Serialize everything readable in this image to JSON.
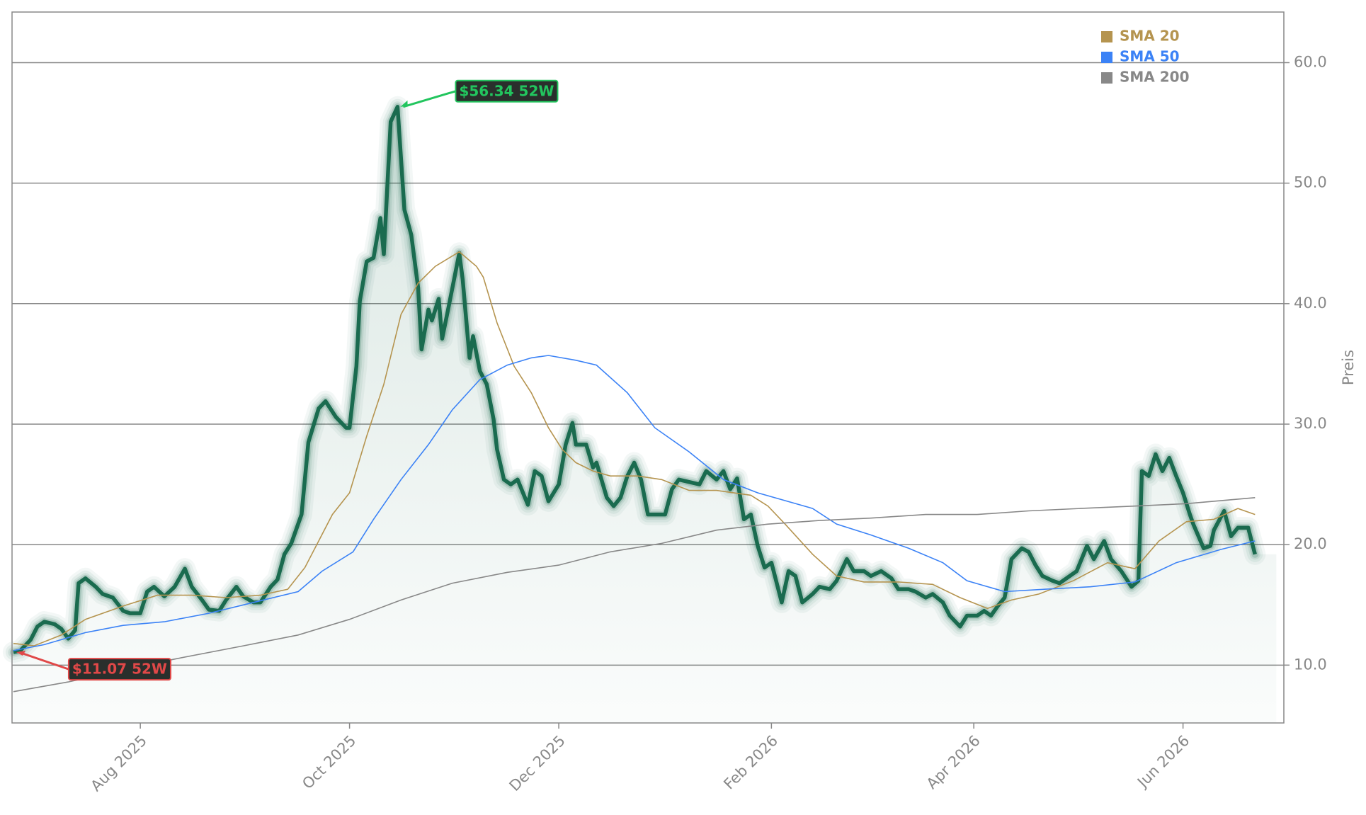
{
  "chart_data": {
    "type": "line",
    "ylabel": "Preis",
    "xlim": [
      -37.4,
      333.4
    ],
    "ylim": [
      5.2,
      64.2
    ],
    "xticks": [
      {
        "value": 0,
        "label": "Aug 2025"
      },
      {
        "value": 61,
        "label": "Oct 2025"
      },
      {
        "value": 122,
        "label": "Dec 2025"
      },
      {
        "value": 184,
        "label": "Feb 2026"
      },
      {
        "value": 243,
        "label": "Apr 2026"
      },
      {
        "value": 304,
        "label": "Jun 2026"
      }
    ],
    "yticks": [
      {
        "value": 10,
        "label": "10.0"
      },
      {
        "value": 20,
        "label": "20.0"
      },
      {
        "value": 30,
        "label": "30.0"
      },
      {
        "value": 40,
        "label": "40.0"
      },
      {
        "value": 50,
        "label": "50.0"
      },
      {
        "value": 60,
        "label": "60.0"
      }
    ],
    "grid": true,
    "legend": "upper right",
    "series": [
      {
        "color": "#1a6b4f",
        "x": [
          -37,
          -35,
          -32,
          -30,
          -28,
          -25,
          -23,
          -21,
          -19,
          -18,
          -16,
          -13,
          -11,
          -8,
          -5,
          -3,
          0,
          2,
          4,
          7,
          10,
          13,
          15,
          18,
          20,
          23,
          25,
          28,
          30,
          33,
          35,
          38,
          40,
          42,
          44,
          47,
          49,
          52,
          54,
          57,
          60,
          61,
          63,
          64,
          66,
          68,
          70,
          71,
          73,
          75,
          77,
          79,
          81,
          82,
          84,
          85,
          87,
          88,
          90,
          93,
          94,
          96,
          97,
          99,
          101,
          103,
          104,
          106,
          108,
          110,
          113,
          115,
          117,
          119,
          122,
          124,
          126,
          127,
          130,
          132,
          133,
          136,
          138,
          140,
          142,
          144,
          146,
          148,
          150,
          153,
          155,
          157,
          160,
          163,
          165,
          168,
          170,
          172,
          174,
          176,
          178,
          180,
          182,
          184,
          187,
          189,
          191,
          193,
          196,
          198,
          201,
          203,
          206,
          208,
          211,
          213,
          216,
          219,
          221,
          224,
          226,
          229,
          231,
          234,
          236,
          239,
          241,
          244,
          246,
          248,
          250,
          252,
          254,
          257,
          259,
          261,
          263,
          266,
          268,
          271,
          273,
          276,
          278,
          281,
          283,
          286,
          289,
          291,
          292,
          294,
          296,
          298,
          300,
          302,
          304,
          306,
          307,
          310,
          312,
          313,
          316,
          318,
          320,
          323,
          325
        ],
        "values": [
          11.07,
          11.2,
          12.1,
          13.2,
          13.6,
          13.4,
          13.0,
          12.2,
          12.9,
          16.8,
          17.2,
          16.5,
          15.9,
          15.6,
          14.5,
          14.3,
          14.3,
          16.1,
          16.5,
          15.7,
          16.5,
          18.0,
          16.5,
          15.4,
          14.6,
          14.5,
          15.4,
          16.5,
          15.7,
          15.2,
          15.2,
          16.5,
          17.1,
          19.2,
          20.1,
          22.5,
          28.5,
          31.3,
          31.9,
          30.6,
          29.7,
          29.7,
          34.8,
          40.2,
          43.5,
          43.8,
          47.1,
          44.1,
          55.1,
          56.34,
          47.8,
          45.7,
          41.3,
          36.2,
          39.5,
          38.6,
          40.4,
          37.1,
          39.9,
          44.2,
          42.0,
          35.5,
          37.3,
          34.4,
          33.3,
          30.4,
          27.9,
          25.4,
          25.0,
          25.4,
          23.3,
          26.1,
          25.7,
          23.6,
          25.0,
          28.3,
          30.1,
          28.3,
          28.3,
          26.4,
          26.8,
          23.9,
          23.2,
          23.9,
          25.7,
          26.8,
          25.4,
          22.5,
          22.5,
          22.5,
          24.6,
          25.4,
          25.2,
          25.0,
          26.1,
          25.4,
          26.1,
          24.6,
          25.5,
          22.1,
          22.5,
          19.9,
          18.1,
          18.5,
          15.2,
          17.8,
          17.4,
          15.2,
          15.9,
          16.5,
          16.3,
          17.0,
          18.8,
          17.8,
          17.8,
          17.4,
          17.8,
          17.2,
          16.3,
          16.3,
          16.1,
          15.6,
          15.9,
          15.2,
          14.1,
          13.2,
          14.1,
          14.1,
          14.5,
          14.1,
          14.9,
          15.6,
          18.8,
          19.7,
          19.4,
          18.3,
          17.4,
          17.0,
          16.8,
          17.4,
          17.8,
          19.9,
          18.8,
          20.3,
          18.8,
          17.8,
          16.5,
          17.0,
          26.1,
          25.7,
          27.5,
          26.1,
          27.2,
          25.7,
          24.3,
          22.5,
          21.7,
          19.7,
          19.9,
          21.2,
          22.8,
          20.7,
          21.4,
          21.4,
          19.2
        ]
      },
      {
        "name": "SMA 20",
        "color": "#b5944f",
        "x": [
          -37,
          -31,
          -23,
          -16,
          -5,
          5,
          15,
          25,
          35,
          43,
          48,
          56,
          61,
          66,
          71,
          76,
          81,
          86,
          93,
          98,
          100,
          104,
          109,
          114,
          119,
          123,
          127,
          132,
          137,
          145,
          152,
          160,
          168,
          178,
          183,
          188,
          196,
          203,
          211,
          221,
          231,
          239,
          247,
          254,
          262,
          272,
          282,
          290,
          297,
          305,
          313,
          320,
          325
        ],
        "values": [
          11.8,
          11.6,
          12.5,
          13.8,
          14.9,
          15.8,
          15.8,
          15.6,
          15.8,
          16.3,
          18.1,
          22.5,
          24.3,
          29.0,
          33.3,
          39.1,
          41.7,
          43.1,
          44.3,
          43.1,
          42.2,
          38.4,
          34.8,
          32.6,
          29.7,
          27.9,
          26.8,
          26.1,
          25.7,
          25.7,
          25.4,
          24.5,
          24.5,
          24.1,
          23.2,
          21.7,
          19.2,
          17.4,
          16.9,
          16.9,
          16.7,
          15.6,
          14.7,
          15.4,
          15.9,
          17.0,
          18.5,
          18.0,
          20.3,
          21.9,
          22.1,
          23.0,
          22.5
        ]
      },
      {
        "name": "SMA 50",
        "color": "#3b82f6",
        "x": [
          -37,
          -28,
          -16,
          -5,
          7,
          20,
          33,
          46,
          53,
          62,
          68,
          76,
          84,
          91,
          99,
          107,
          114,
          119,
          127,
          133,
          142,
          150,
          160,
          170,
          180,
          196,
          203,
          213,
          224,
          234,
          241,
          252,
          264,
          277,
          290,
          302,
          315,
          325
        ],
        "values": [
          11.2,
          11.7,
          12.7,
          13.3,
          13.6,
          14.3,
          15.2,
          16.1,
          17.8,
          19.4,
          22.1,
          25.4,
          28.3,
          31.2,
          33.7,
          34.9,
          35.5,
          35.7,
          35.3,
          34.9,
          32.6,
          29.7,
          27.7,
          25.4,
          24.3,
          23.0,
          21.7,
          20.8,
          19.7,
          18.5,
          17.0,
          16.1,
          16.3,
          16.5,
          16.9,
          18.5,
          19.6,
          20.3
        ]
      },
      {
        "name": "SMA 200",
        "color": "#888888",
        "x": [
          -37,
          -21,
          -5,
          10,
          30,
          46,
          61,
          76,
          91,
          107,
          122,
          137,
          152,
          168,
          183,
          198,
          213,
          229,
          244,
          259,
          274,
          290,
          305,
          325
        ],
        "values": [
          7.8,
          8.6,
          9.6,
          10.5,
          11.6,
          12.5,
          13.8,
          15.4,
          16.8,
          17.7,
          18.3,
          19.4,
          20.1,
          21.2,
          21.7,
          22.0,
          22.2,
          22.5,
          22.5,
          22.8,
          23.0,
          23.2,
          23.4,
          23.9
        ]
      }
    ],
    "annotations": [
      {
        "text": "$56.34 52W",
        "x": 75,
        "y": 56.34,
        "color": "#22c55e"
      },
      {
        "text": "$11.07 52W",
        "x": -37,
        "y": 11.07,
        "color": "#e04848"
      }
    ]
  }
}
